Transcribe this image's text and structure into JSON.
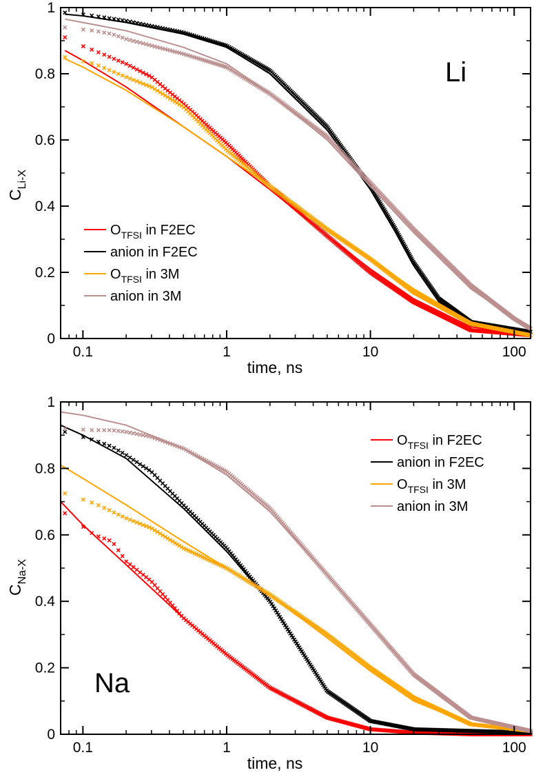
{
  "colors": {
    "otfsi_f2ec": "#ff0000",
    "anion_f2ec": "#000000",
    "otfsi_3m": "#ffa500",
    "anion_3m": "#bc8f8f"
  },
  "chart_data": [
    {
      "type": "line",
      "panel_label": "Li",
      "xlabel": "time, ns",
      "ylabel_main": "C",
      "ylabel_sub": "Li-X",
      "xscale": "log",
      "xlim": [
        0.07,
        130
      ],
      "ylim": [
        0,
        1
      ],
      "x_ticks": [
        0.1,
        1,
        10,
        100
      ],
      "x_tick_labels": [
        "0.1",
        "1",
        "10",
        "100"
      ],
      "y_ticks": [
        0,
        0.2,
        0.4,
        0.6,
        0.8,
        1
      ],
      "y_tick_labels": [
        "0",
        "0.2",
        "0.4",
        "0.6",
        "0.8",
        "1"
      ],
      "legend_placement": "center-left",
      "series": [
        {
          "name_main": "O",
          "name_sub": "TFSI",
          "name_rest": " in F2EC",
          "color_key": "otfsi_f2ec",
          "fit": {
            "x": [
              0.075,
              0.1,
              0.2,
              0.5,
              1,
              2,
              5,
              10,
              20,
              50,
              130
            ],
            "y": [
              0.87,
              0.84,
              0.76,
              0.64,
              0.55,
              0.45,
              0.31,
              0.21,
              0.12,
              0.035,
              0.01
            ]
          },
          "data": {
            "x": [
              0.075,
              0.08,
              0.12,
              0.2,
              0.3,
              0.5,
              1,
              2,
              5,
              10,
              20,
              50,
              130
            ],
            "y": [
              0.91,
              0.9,
              0.87,
              0.83,
              0.79,
              0.71,
              0.59,
              0.46,
              0.31,
              0.2,
              0.11,
              0.025,
              0.01
            ]
          }
        },
        {
          "name_main": "anion in F2EC",
          "name_sub": "",
          "name_rest": "",
          "color_key": "anion_f2ec",
          "fit": {
            "x": [
              0.075,
              0.1,
              0.2,
              0.5,
              1,
              2,
              5,
              10,
              15,
              20,
              30,
              50,
              130
            ],
            "y": [
              0.98,
              0.975,
              0.955,
              0.92,
              0.88,
              0.8,
              0.63,
              0.45,
              0.32,
              0.22,
              0.11,
              0.04,
              0.01
            ]
          },
          "data": {
            "x": [
              0.075,
              0.12,
              0.2,
              0.5,
              1,
              2,
              5,
              10,
              15,
              20,
              30,
              50,
              130
            ],
            "y": [
              0.985,
              0.975,
              0.96,
              0.925,
              0.885,
              0.81,
              0.64,
              0.46,
              0.33,
              0.23,
              0.12,
              0.05,
              0.02
            ]
          }
        },
        {
          "name_main": "O",
          "name_sub": "TFSI",
          "name_rest": " in 3M",
          "color_key": "otfsi_3m",
          "fit": {
            "x": [
              0.075,
              0.1,
              0.2,
              0.5,
              1,
              2,
              5,
              10,
              20,
              50,
              130
            ],
            "y": [
              0.845,
              0.82,
              0.75,
              0.64,
              0.55,
              0.46,
              0.33,
              0.24,
              0.15,
              0.05,
              0.01
            ]
          },
          "data": {
            "x": [
              0.075,
              0.12,
              0.2,
              0.3,
              0.5,
              1,
              2,
              5,
              10,
              20,
              50,
              130
            ],
            "y": [
              0.85,
              0.83,
              0.79,
              0.76,
              0.7,
              0.57,
              0.46,
              0.33,
              0.24,
              0.14,
              0.045,
              0.01
            ]
          }
        },
        {
          "name_main": "anion in 3M",
          "name_sub": "",
          "name_rest": "",
          "color_key": "anion_3m",
          "fit": {
            "x": [
              0.075,
              0.1,
              0.2,
              0.5,
              1,
              2,
              5,
              10,
              20,
              50,
              100,
              130
            ],
            "y": [
              0.965,
              0.955,
              0.93,
              0.88,
              0.83,
              0.74,
              0.6,
              0.46,
              0.32,
              0.15,
              0.06,
              0.03
            ]
          },
          "data": {
            "x": [
              0.075,
              0.12,
              0.16,
              0.2,
              0.3,
              0.5,
              1,
              2,
              5,
              10,
              20,
              50,
              100,
              130
            ],
            "y": [
              0.94,
              0.93,
              0.92,
              0.905,
              0.885,
              0.86,
              0.82,
              0.74,
              0.61,
              0.47,
              0.33,
              0.16,
              0.06,
              0.03
            ]
          }
        }
      ]
    },
    {
      "type": "line",
      "panel_label": "Na",
      "xlabel": "time, ns",
      "ylabel_main": "C",
      "ylabel_sub": "Na-X",
      "xscale": "log",
      "xlim": [
        0.07,
        130
      ],
      "ylim": [
        0,
        1
      ],
      "x_ticks": [
        0.1,
        1,
        10,
        100
      ],
      "x_tick_labels": [
        "0.1",
        "1",
        "10",
        "100"
      ],
      "y_ticks": [
        0,
        0.2,
        0.4,
        0.6,
        0.8,
        1
      ],
      "y_tick_labels": [
        "0",
        "0.2",
        "0.4",
        "0.6",
        "0.8",
        "1"
      ],
      "legend_placement": "top-right",
      "series": [
        {
          "name_main": "O",
          "name_sub": "TFSI",
          "name_rest": " in F2EC",
          "color_key": "otfsi_f2ec",
          "fit": {
            "x": [
              0.07,
              0.1,
              0.2,
              0.5,
              1,
              2,
              5,
              10,
              20,
              50,
              130
            ],
            "y": [
              0.7,
              0.63,
              0.51,
              0.35,
              0.24,
              0.14,
              0.05,
              0.015,
              0.005,
              0,
              0
            ]
          },
          "data": {
            "x": [
              0.075,
              0.12,
              0.16,
              0.2,
              0.3,
              0.5,
              1,
              2,
              5,
              10,
              20,
              50,
              130
            ],
            "y": [
              0.665,
              0.6,
              0.58,
              0.52,
              0.46,
              0.35,
              0.24,
              0.14,
              0.05,
              0.015,
              0.005,
              0,
              0
            ]
          }
        },
        {
          "name_main": "anion in F2EC",
          "name_sub": "",
          "name_rest": "",
          "color_key": "anion_f2ec",
          "fit": {
            "x": [
              0.07,
              0.1,
              0.2,
              0.5,
              1,
              2,
              3,
              5,
              10,
              20,
              50,
              130
            ],
            "y": [
              0.93,
              0.9,
              0.83,
              0.68,
              0.55,
              0.4,
              0.28,
              0.13,
              0.04,
              0.015,
              0.01,
              0.005
            ]
          },
          "data": {
            "x": [
              0.075,
              0.12,
              0.16,
              0.2,
              0.3,
              0.5,
              1,
              2,
              3,
              5,
              10,
              20,
              50,
              130
            ],
            "y": [
              0.91,
              0.885,
              0.865,
              0.84,
              0.79,
              0.69,
              0.56,
              0.4,
              0.28,
              0.13,
              0.04,
              0.015,
              0.01,
              0.005
            ]
          }
        },
        {
          "name_main": "O",
          "name_sub": "TFSI",
          "name_rest": " in 3M",
          "color_key": "otfsi_3m",
          "fit": {
            "x": [
              0.07,
              0.1,
              0.2,
              0.5,
              1,
              2,
              5,
              10,
              20,
              50,
              130
            ],
            "y": [
              0.81,
              0.77,
              0.69,
              0.58,
              0.5,
              0.42,
              0.29,
              0.19,
              0.1,
              0.03,
              0.01
            ]
          },
          "data": {
            "x": [
              0.075,
              0.12,
              0.16,
              0.2,
              0.3,
              0.5,
              1,
              2,
              5,
              10,
              20,
              50,
              130
            ],
            "y": [
              0.725,
              0.695,
              0.67,
              0.65,
              0.62,
              0.56,
              0.5,
              0.42,
              0.3,
              0.2,
              0.11,
              0.03,
              0.01
            ]
          }
        },
        {
          "name_main": "anion in 3M",
          "name_sub": "",
          "name_rest": "",
          "color_key": "anion_3m",
          "fit": {
            "x": [
              0.07,
              0.1,
              0.2,
              0.5,
              1,
              2,
              5,
              10,
              20,
              50,
              130
            ],
            "y": [
              0.97,
              0.96,
              0.93,
              0.86,
              0.78,
              0.67,
              0.48,
              0.33,
              0.18,
              0.05,
              0.01
            ]
          },
          "data": {
            "x": [
              0.075,
              0.12,
              0.16,
              0.2,
              0.3,
              0.5,
              1,
              2,
              5,
              10,
              20,
              50,
              130
            ],
            "y": [
              0.92,
              0.915,
              0.915,
              0.91,
              0.895,
              0.86,
              0.79,
              0.68,
              0.48,
              0.33,
              0.18,
              0.05,
              0.01
            ]
          }
        }
      ]
    }
  ]
}
